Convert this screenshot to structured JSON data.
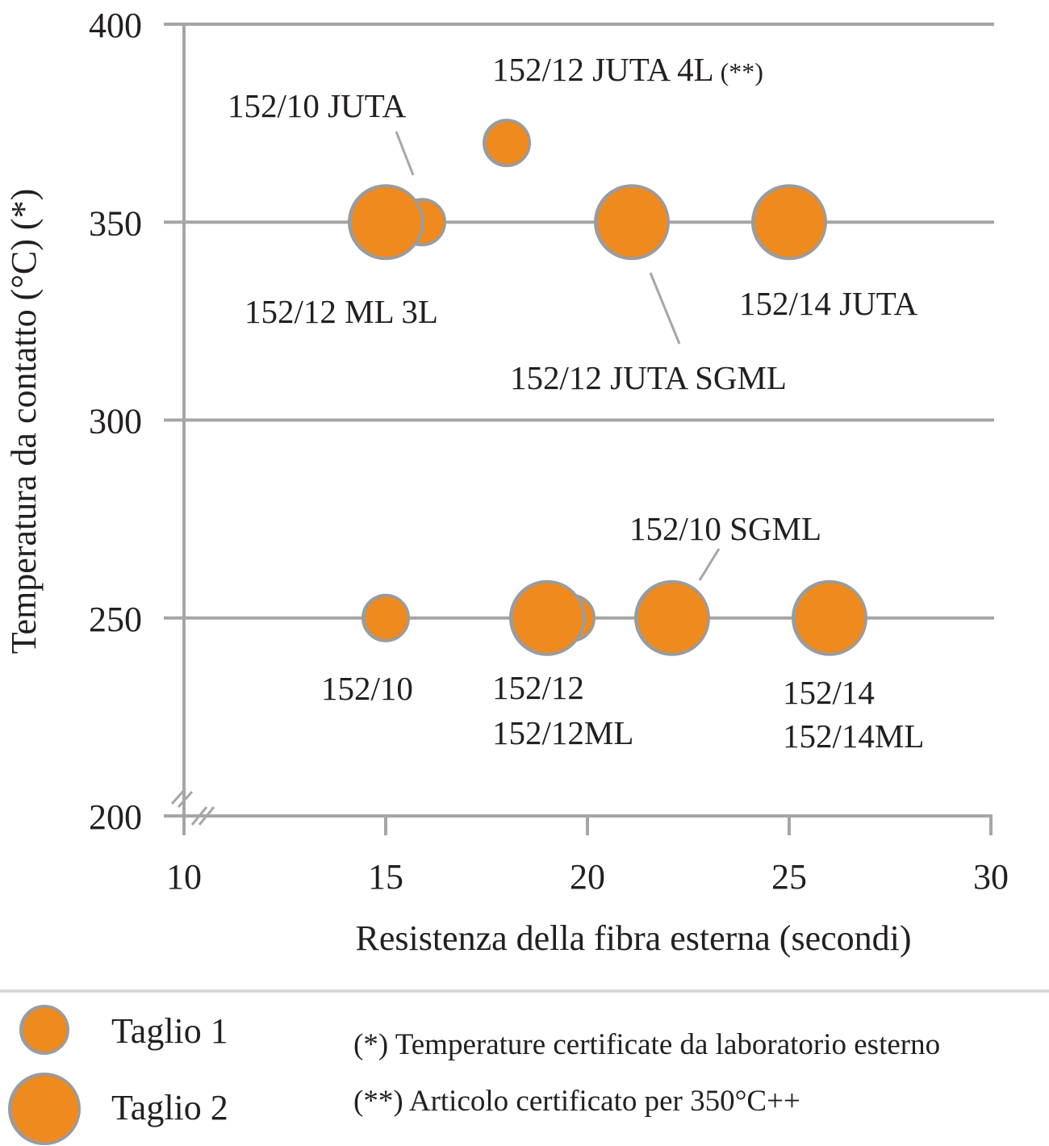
{
  "chart_data": {
    "type": "bubble",
    "title": "",
    "xlabel": "Resistenza della fibra esterna (secondi)",
    "ylabel": "Temperatura da contatto (°C) (*)",
    "xlim": [
      10,
      30
    ],
    "ylim": [
      200,
      400
    ],
    "xticks": [
      "10",
      "15",
      "20",
      "25",
      "30"
    ],
    "yticks": [
      "200",
      "250",
      "300",
      "350",
      "400"
    ],
    "x_ticks_values": [
      10,
      15,
      20,
      25,
      30
    ],
    "y_ticks_values": [
      200,
      250,
      300,
      350,
      400
    ],
    "grid": true,
    "axis_break": true,
    "colors": {
      "fill": "#ef8a1e",
      "stroke": "#9b9b9b",
      "grid": "#a6a6a6"
    },
    "series": [
      {
        "name": "Taglio 1",
        "points": [
          {
            "x": 15.9,
            "y": 350
          },
          {
            "x": 15.0,
            "y": 250
          },
          {
            "x": 19.6,
            "y": 250
          },
          {
            "x": 18.0,
            "y": 370
          }
        ]
      },
      {
        "name": "Taglio 2",
        "points": [
          {
            "x": 15.0,
            "y": 350
          },
          {
            "x": 21.1,
            "y": 350
          },
          {
            "x": 25.0,
            "y": 350
          },
          {
            "x": 19.0,
            "y": 250
          },
          {
            "x": 22.1,
            "y": 250
          },
          {
            "x": 26.0,
            "y": 250
          }
        ]
      }
    ],
    "annotations": [
      {
        "text": "152/12 JUTA 4L",
        "suffix": "(**)"
      },
      {
        "text": "152/10 JUTA"
      },
      {
        "text": "152/12 ML 3L"
      },
      {
        "text": "152/14 JUTA"
      },
      {
        "text": "152/12 JUTA SGML"
      },
      {
        "text": "152/10 SGML"
      },
      {
        "text": "152/10"
      },
      {
        "text": "152/12"
      },
      {
        "text": "152/12ML"
      },
      {
        "text": "152/14"
      },
      {
        "text": "152/14ML"
      }
    ]
  },
  "legend": {
    "items": [
      {
        "label": "Taglio 1"
      },
      {
        "label": "Taglio 2"
      }
    ]
  },
  "notes": [
    "(*) Temperature certificate da laboratorio esterno",
    "(**) Articolo certificato per 350°C++"
  ]
}
